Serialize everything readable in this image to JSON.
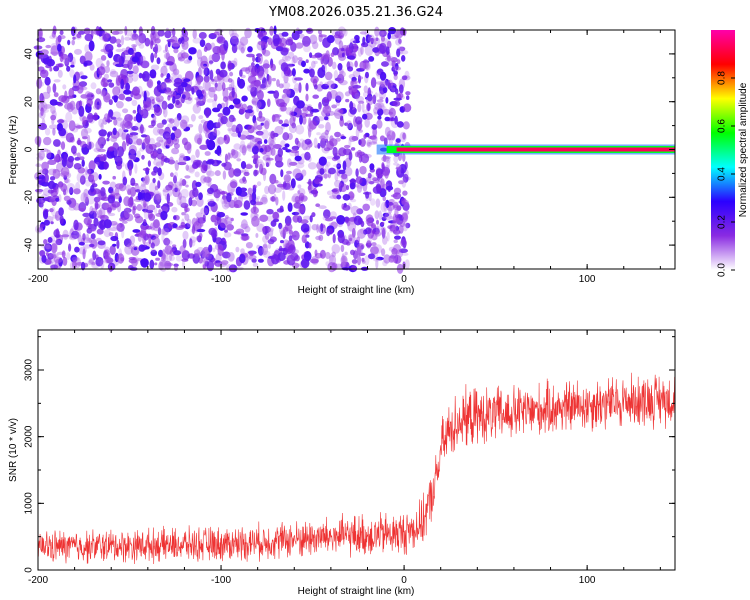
{
  "title": "YM08.2026.035.21.36.G24",
  "chart_data": [
    {
      "type": "heatmap",
      "xlabel": "Height of straight line (km)",
      "ylabel": "Frequency (Hz)",
      "xlim": [
        -200,
        148
      ],
      "ylim": [
        -50,
        50
      ],
      "xticks": [
        -200,
        -100,
        0,
        100
      ],
      "yticks": [
        -40,
        -20,
        0,
        20,
        40
      ],
      "description_of_values": "Noise speckle (amplitude ~0.0-0.2) for heights below about 0 km; strong narrow line at 0 Hz (amplitude ~0.9-1.0) for heights above about 10 km",
      "tone_line": {
        "frequency_hz": 0,
        "x_start_km": -15,
        "x_end_km": 148,
        "peak_amplitude": 0.98
      },
      "noise_region": {
        "x_start_km": -200,
        "x_end_km": 0,
        "amplitude_range": [
          0.0,
          0.2
        ]
      },
      "colorbar": {
        "label": "Normalized spectral amplitude",
        "ticks": [
          "0.0",
          "0.2",
          "0.4",
          "0.6",
          "0.8"
        ],
        "range": [
          0.0,
          1.0
        ],
        "colormap": [
          "#ffffff",
          "#8a2be2",
          "#2b00ff",
          "#00ffff",
          "#00ff00",
          "#ffff00",
          "#ff0000",
          "#ff00aa"
        ]
      }
    },
    {
      "type": "line",
      "xlabel": "Height of straight line (km)",
      "ylabel": "SNR (10 * v/v)",
      "xlim": [
        -200,
        148
      ],
      "ylim": [
        0,
        3600
      ],
      "xticks": [
        -200,
        -100,
        0,
        100
      ],
      "yticks": [
        0,
        1000,
        2000,
        3000
      ],
      "series": [
        {
          "color": "#ee3333",
          "x": [
            -200,
            -180,
            -160,
            -140,
            -120,
            -100,
            -80,
            -60,
            -40,
            -20,
            0,
            10,
            15,
            18,
            20,
            25,
            30,
            40,
            50,
            60,
            70,
            80,
            90,
            100,
            110,
            120,
            130,
            140,
            148
          ],
          "y": [
            350,
            350,
            360,
            370,
            380,
            390,
            420,
            460,
            500,
            520,
            550,
            700,
            1100,
            1400,
            1800,
            2100,
            2250,
            2300,
            2320,
            2350,
            2380,
            2420,
            2450,
            2480,
            2500,
            2520,
            2550,
            2560,
            2580
          ],
          "noise_amplitude": [
            250,
            250,
            250,
            250,
            250,
            260,
            270,
            280,
            300,
            320,
            330,
            350,
            380,
            400,
            420,
            450,
            450,
            430,
            420,
            420,
            400,
            400,
            400,
            400,
            400,
            400,
            400,
            400,
            400
          ]
        }
      ]
    }
  ]
}
